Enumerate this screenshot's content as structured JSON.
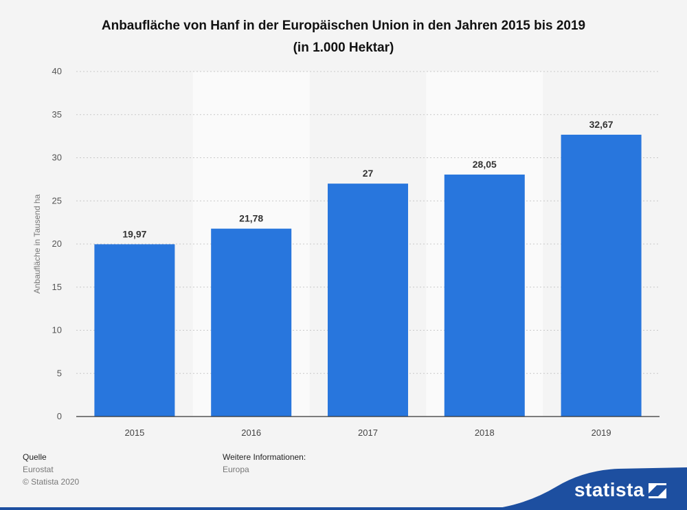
{
  "title_line1": "Anbaufläche von Hanf in der Europäischen Union in den Jahren 2015 bis 2019",
  "title_line2": "(in 1.000 Hektar)",
  "chart_data": {
    "type": "bar",
    "categories": [
      "2015",
      "2016",
      "2017",
      "2018",
      "2019"
    ],
    "values": [
      19.97,
      21.78,
      27,
      28.05,
      32.67
    ],
    "data_labels": [
      "19,97",
      "21,78",
      "27",
      "28,05",
      "32,67"
    ],
    "ylabel": "Anbaufläche in Tausend ha",
    "xlabel": "",
    "ylim": [
      0,
      40
    ],
    "yticks": [
      0,
      5,
      10,
      15,
      20,
      25,
      30,
      35,
      40
    ],
    "grid": true,
    "bar_color": "#2876dd"
  },
  "source": {
    "heading": "Quelle",
    "name": "Eurostat",
    "copyright": "© Statista 2020"
  },
  "info": {
    "heading": "Weitere Informationen:",
    "region": "Europa"
  },
  "brand": {
    "name": "statista",
    "color": "#1d4fa0"
  }
}
